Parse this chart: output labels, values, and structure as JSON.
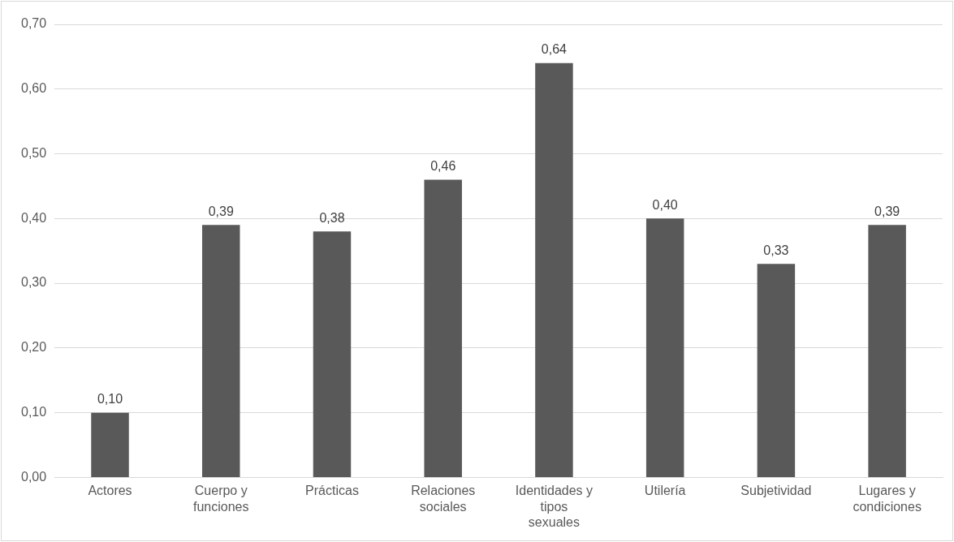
{
  "chart_data": {
    "type": "bar",
    "categories": [
      "Actores",
      "Cuerpo y funciones",
      "Prácticas",
      "Relaciones sociales",
      "Identidades y tipos sexuales",
      "Utilería",
      "Subjetividad",
      "Lugares y condiciones"
    ],
    "values": [
      0.1,
      0.39,
      0.38,
      0.46,
      0.64,
      0.4,
      0.33,
      0.39
    ],
    "value_labels": [
      "0,10",
      "0,39",
      "0,38",
      "0,46",
      "0,64",
      "0,40",
      "0,33",
      "0,39"
    ],
    "color": "#595959",
    "ylim": [
      0,
      0.7
    ],
    "yticks": [
      {
        "value": 0,
        "label": "0,00"
      },
      {
        "value": 0.1,
        "label": "0,10"
      },
      {
        "value": 0.2,
        "label": "0,20"
      },
      {
        "value": 0.3,
        "label": "0,30"
      },
      {
        "value": 0.4,
        "label": "0,40"
      },
      {
        "value": 0.5,
        "label": "0,50"
      },
      {
        "value": 0.6,
        "label": "0,60"
      },
      {
        "value": 0.7,
        "label": "0,70"
      }
    ],
    "grid": "y",
    "legend": false
  }
}
